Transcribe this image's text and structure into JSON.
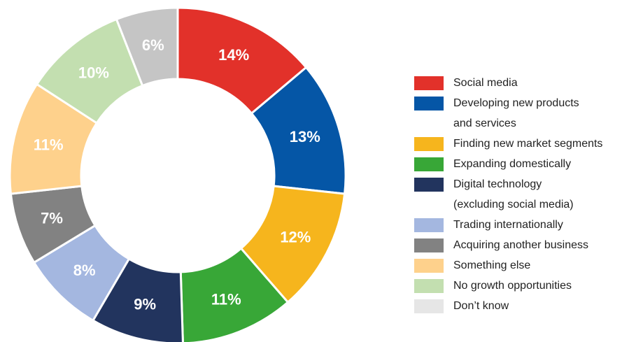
{
  "chart_data": {
    "type": "pie",
    "variant": "donut",
    "title": "",
    "legend_position": "right",
    "slices": [
      {
        "label": "Social media",
        "value": 14,
        "display": "14%",
        "color": "#e2312a"
      },
      {
        "label": "Developing new products\nand services",
        "value": 13,
        "display": "13%",
        "color": "#0556a6"
      },
      {
        "label": "Finding new market segments",
        "value": 12,
        "display": "12%",
        "color": "#f6b51d"
      },
      {
        "label": "Expanding domestically",
        "value": 11,
        "display": "11%",
        "color": "#38a737"
      },
      {
        "label": "Digital technology\n(excluding social media)",
        "value": 9,
        "display": "9%",
        "color": "#22345e"
      },
      {
        "label": "Trading internationally",
        "value": 8,
        "display": "8%",
        "color": "#a4b7e0"
      },
      {
        "label": "Acquiring another business",
        "value": 7,
        "display": "7%",
        "color": "#828282"
      },
      {
        "label": "Something else",
        "value": 11,
        "display": "11%",
        "color": "#fed18c"
      },
      {
        "label": "No growth opportunities",
        "value": 10,
        "display": "10%",
        "color": "#c3dfb0"
      },
      {
        "label": "Don’t know",
        "value": 6,
        "display": "6%",
        "color": "#c5c5c5"
      }
    ],
    "legend_only": [
      {
        "label": "Don’t know",
        "color": "#e6e6e6"
      }
    ]
  }
}
